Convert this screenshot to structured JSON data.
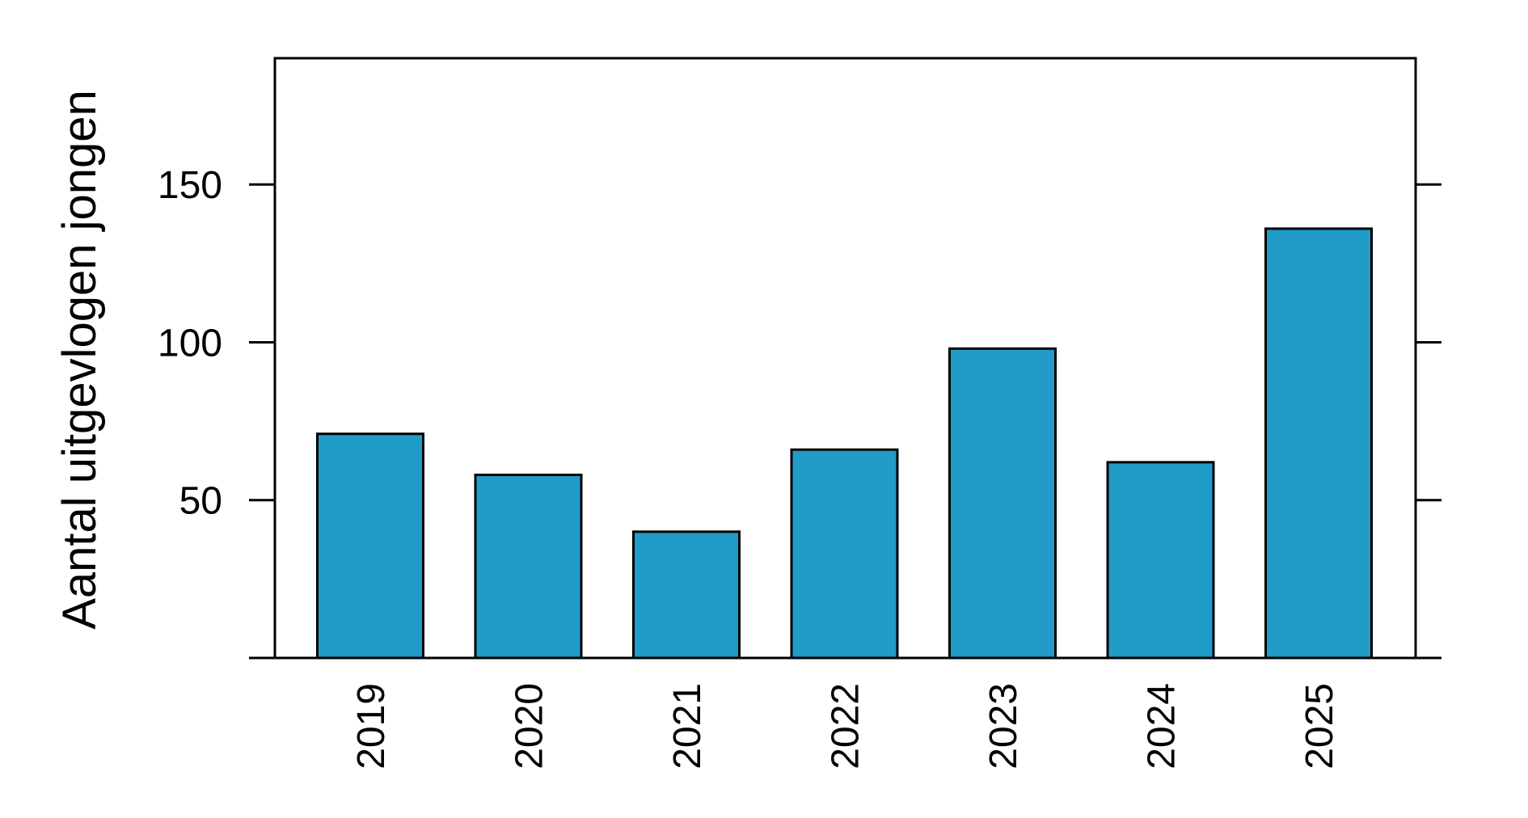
{
  "chart_data": {
    "type": "bar",
    "y_label": "Aantal uitgevlogen jongen",
    "categories": [
      "2019",
      "2020",
      "2021",
      "2022",
      "2023",
      "2024",
      "2025"
    ],
    "values": [
      71,
      58,
      40,
      66,
      98,
      62,
      136
    ],
    "color": "#219bc7",
    "ylim": [
      0,
      190
    ],
    "yticks": [
      50,
      100,
      150
    ]
  }
}
